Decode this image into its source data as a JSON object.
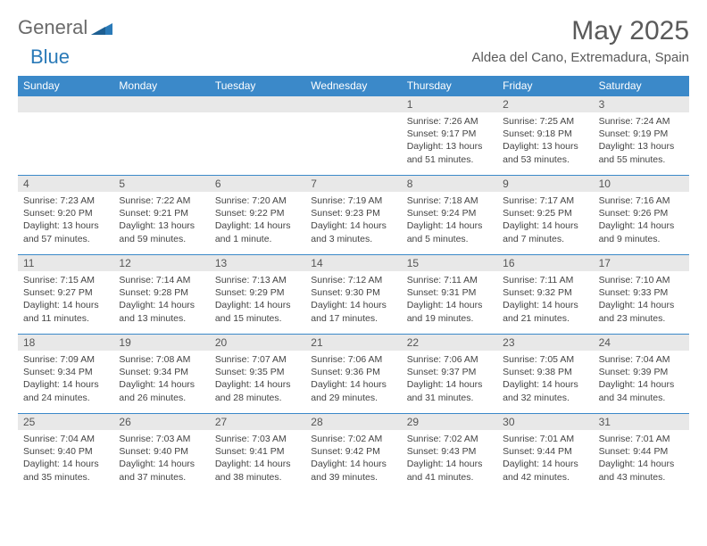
{
  "brand": {
    "general": "General",
    "blue": "Blue"
  },
  "title": {
    "month": "May 2025",
    "location": "Aldea del Cano, Extremadura, Spain"
  },
  "colors": {
    "header_bg": "#3b89c9",
    "header_text": "#ffffff",
    "daynum_bg": "#e8e8e8",
    "week_border": "#3b89c9",
    "logo_gray": "#6a6a6a",
    "logo_blue": "#2a7ab8",
    "title_color": "#5a5a5a",
    "body_text": "#444444"
  },
  "dow": [
    "Sunday",
    "Monday",
    "Tuesday",
    "Wednesday",
    "Thursday",
    "Friday",
    "Saturday"
  ],
  "weeks": [
    [
      {
        "n": "",
        "sr": "",
        "ss": "",
        "dl": ""
      },
      {
        "n": "",
        "sr": "",
        "ss": "",
        "dl": ""
      },
      {
        "n": "",
        "sr": "",
        "ss": "",
        "dl": ""
      },
      {
        "n": "",
        "sr": "",
        "ss": "",
        "dl": ""
      },
      {
        "n": "1",
        "sr": "Sunrise: 7:26 AM",
        "ss": "Sunset: 9:17 PM",
        "dl": "Daylight: 13 hours and 51 minutes."
      },
      {
        "n": "2",
        "sr": "Sunrise: 7:25 AM",
        "ss": "Sunset: 9:18 PM",
        "dl": "Daylight: 13 hours and 53 minutes."
      },
      {
        "n": "3",
        "sr": "Sunrise: 7:24 AM",
        "ss": "Sunset: 9:19 PM",
        "dl": "Daylight: 13 hours and 55 minutes."
      }
    ],
    [
      {
        "n": "4",
        "sr": "Sunrise: 7:23 AM",
        "ss": "Sunset: 9:20 PM",
        "dl": "Daylight: 13 hours and 57 minutes."
      },
      {
        "n": "5",
        "sr": "Sunrise: 7:22 AM",
        "ss": "Sunset: 9:21 PM",
        "dl": "Daylight: 13 hours and 59 minutes."
      },
      {
        "n": "6",
        "sr": "Sunrise: 7:20 AM",
        "ss": "Sunset: 9:22 PM",
        "dl": "Daylight: 14 hours and 1 minute."
      },
      {
        "n": "7",
        "sr": "Sunrise: 7:19 AM",
        "ss": "Sunset: 9:23 PM",
        "dl": "Daylight: 14 hours and 3 minutes."
      },
      {
        "n": "8",
        "sr": "Sunrise: 7:18 AM",
        "ss": "Sunset: 9:24 PM",
        "dl": "Daylight: 14 hours and 5 minutes."
      },
      {
        "n": "9",
        "sr": "Sunrise: 7:17 AM",
        "ss": "Sunset: 9:25 PM",
        "dl": "Daylight: 14 hours and 7 minutes."
      },
      {
        "n": "10",
        "sr": "Sunrise: 7:16 AM",
        "ss": "Sunset: 9:26 PM",
        "dl": "Daylight: 14 hours and 9 minutes."
      }
    ],
    [
      {
        "n": "11",
        "sr": "Sunrise: 7:15 AM",
        "ss": "Sunset: 9:27 PM",
        "dl": "Daylight: 14 hours and 11 minutes."
      },
      {
        "n": "12",
        "sr": "Sunrise: 7:14 AM",
        "ss": "Sunset: 9:28 PM",
        "dl": "Daylight: 14 hours and 13 minutes."
      },
      {
        "n": "13",
        "sr": "Sunrise: 7:13 AM",
        "ss": "Sunset: 9:29 PM",
        "dl": "Daylight: 14 hours and 15 minutes."
      },
      {
        "n": "14",
        "sr": "Sunrise: 7:12 AM",
        "ss": "Sunset: 9:30 PM",
        "dl": "Daylight: 14 hours and 17 minutes."
      },
      {
        "n": "15",
        "sr": "Sunrise: 7:11 AM",
        "ss": "Sunset: 9:31 PM",
        "dl": "Daylight: 14 hours and 19 minutes."
      },
      {
        "n": "16",
        "sr": "Sunrise: 7:11 AM",
        "ss": "Sunset: 9:32 PM",
        "dl": "Daylight: 14 hours and 21 minutes."
      },
      {
        "n": "17",
        "sr": "Sunrise: 7:10 AM",
        "ss": "Sunset: 9:33 PM",
        "dl": "Daylight: 14 hours and 23 minutes."
      }
    ],
    [
      {
        "n": "18",
        "sr": "Sunrise: 7:09 AM",
        "ss": "Sunset: 9:34 PM",
        "dl": "Daylight: 14 hours and 24 minutes."
      },
      {
        "n": "19",
        "sr": "Sunrise: 7:08 AM",
        "ss": "Sunset: 9:34 PM",
        "dl": "Daylight: 14 hours and 26 minutes."
      },
      {
        "n": "20",
        "sr": "Sunrise: 7:07 AM",
        "ss": "Sunset: 9:35 PM",
        "dl": "Daylight: 14 hours and 28 minutes."
      },
      {
        "n": "21",
        "sr": "Sunrise: 7:06 AM",
        "ss": "Sunset: 9:36 PM",
        "dl": "Daylight: 14 hours and 29 minutes."
      },
      {
        "n": "22",
        "sr": "Sunrise: 7:06 AM",
        "ss": "Sunset: 9:37 PM",
        "dl": "Daylight: 14 hours and 31 minutes."
      },
      {
        "n": "23",
        "sr": "Sunrise: 7:05 AM",
        "ss": "Sunset: 9:38 PM",
        "dl": "Daylight: 14 hours and 32 minutes."
      },
      {
        "n": "24",
        "sr": "Sunrise: 7:04 AM",
        "ss": "Sunset: 9:39 PM",
        "dl": "Daylight: 14 hours and 34 minutes."
      }
    ],
    [
      {
        "n": "25",
        "sr": "Sunrise: 7:04 AM",
        "ss": "Sunset: 9:40 PM",
        "dl": "Daylight: 14 hours and 35 minutes."
      },
      {
        "n": "26",
        "sr": "Sunrise: 7:03 AM",
        "ss": "Sunset: 9:40 PM",
        "dl": "Daylight: 14 hours and 37 minutes."
      },
      {
        "n": "27",
        "sr": "Sunrise: 7:03 AM",
        "ss": "Sunset: 9:41 PM",
        "dl": "Daylight: 14 hours and 38 minutes."
      },
      {
        "n": "28",
        "sr": "Sunrise: 7:02 AM",
        "ss": "Sunset: 9:42 PM",
        "dl": "Daylight: 14 hours and 39 minutes."
      },
      {
        "n": "29",
        "sr": "Sunrise: 7:02 AM",
        "ss": "Sunset: 9:43 PM",
        "dl": "Daylight: 14 hours and 41 minutes."
      },
      {
        "n": "30",
        "sr": "Sunrise: 7:01 AM",
        "ss": "Sunset: 9:44 PM",
        "dl": "Daylight: 14 hours and 42 minutes."
      },
      {
        "n": "31",
        "sr": "Sunrise: 7:01 AM",
        "ss": "Sunset: 9:44 PM",
        "dl": "Daylight: 14 hours and 43 minutes."
      }
    ]
  ]
}
